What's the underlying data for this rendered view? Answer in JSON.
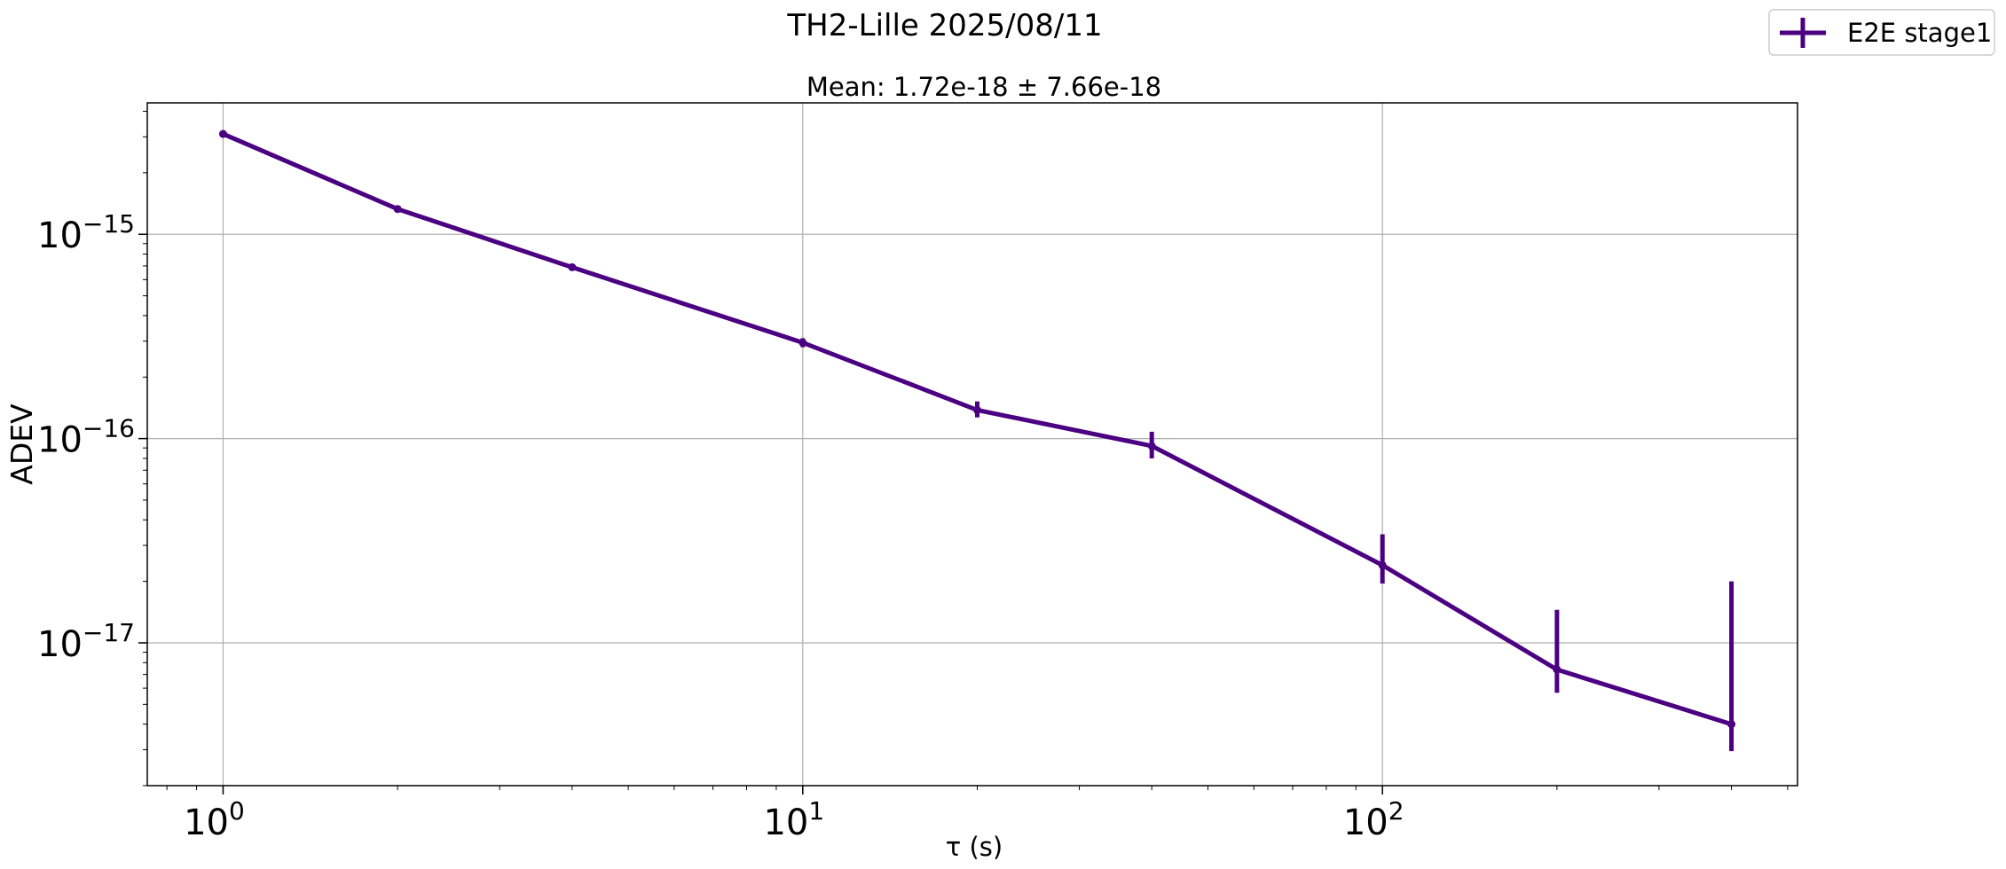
{
  "figure": {
    "suptitle": "TH2-Lille 2025/08/11"
  },
  "chart_data": {
    "type": "line",
    "title": "Mean: 1.72e-18 ± 7.66e-18",
    "xlabel": "τ (s)",
    "ylabel": "ADEV",
    "xscale": "log",
    "yscale": "log",
    "xlim": [
      0.74,
      520
    ],
    "ylim": [
      2e-18,
      4.4e-15
    ],
    "grid": true,
    "legend_position": "top-right (outside plot area)",
    "x_ticks": [
      {
        "value": 1,
        "base": "10",
        "exp": "0"
      },
      {
        "value": 10,
        "base": "10",
        "exp": "1"
      },
      {
        "value": 100,
        "base": "10",
        "exp": "2"
      }
    ],
    "y_ticks": [
      {
        "value": 1e-15,
        "base": "10",
        "exp": "−15"
      },
      {
        "value": 1e-16,
        "base": "10",
        "exp": "−16"
      },
      {
        "value": 1e-17,
        "base": "10",
        "exp": "−17"
      }
    ],
    "series": [
      {
        "name": "E2E stage1",
        "color": "#4b0082",
        "points": [
          {
            "x": 1,
            "y": 3.1e-15,
            "ylo": 3.05e-15,
            "yhi": 3.15e-15
          },
          {
            "x": 2,
            "y": 1.33e-15,
            "ylo": 1.31e-15,
            "yhi": 1.35e-15
          },
          {
            "x": 4,
            "y": 6.9e-16,
            "ylo": 6.75e-16,
            "yhi": 7.05e-16
          },
          {
            "x": 10,
            "y": 2.95e-16,
            "ylo": 2.8e-16,
            "yhi": 3.1e-16
          },
          {
            "x": 20,
            "y": 1.38e-16,
            "ylo": 1.27e-16,
            "yhi": 1.52e-16
          },
          {
            "x": 40,
            "y": 9.2e-17,
            "ylo": 8e-17,
            "yhi": 1.08e-16
          },
          {
            "x": 100,
            "y": 2.4e-17,
            "ylo": 1.95e-17,
            "yhi": 3.4e-17
          },
          {
            "x": 200,
            "y": 7.4e-18,
            "ylo": 5.7e-18,
            "yhi": 1.45e-17
          },
          {
            "x": 400,
            "y": 4e-18,
            "ylo": 2.95e-18,
            "yhi": 2e-17
          }
        ]
      }
    ]
  }
}
